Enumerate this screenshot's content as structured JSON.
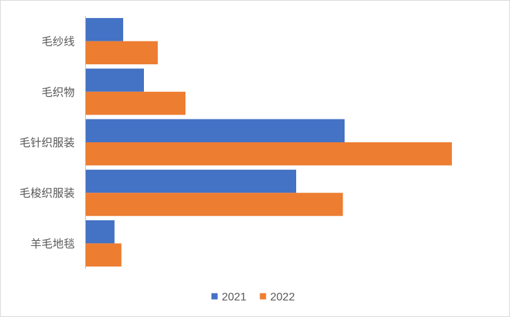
{
  "chart_data": {
    "type": "bar",
    "orientation": "horizontal",
    "categories": [
      "毛纱线",
      "毛织物",
      "毛针织服装",
      "毛梭织服装",
      "羊毛地毯"
    ],
    "series": [
      {
        "name": "2021",
        "color": "#4472c4",
        "values": [
          1.1,
          1.7,
          7.5,
          6.1,
          0.85
        ]
      },
      {
        "name": "2022",
        "color": "#ed7d31",
        "values": [
          2.1,
          2.9,
          10.6,
          7.45,
          1.05
        ]
      }
    ],
    "xlim": [
      0,
      12
    ],
    "xlabel": "",
    "ylabel": "",
    "title": "",
    "grid": false,
    "legend_position": "bottom"
  }
}
